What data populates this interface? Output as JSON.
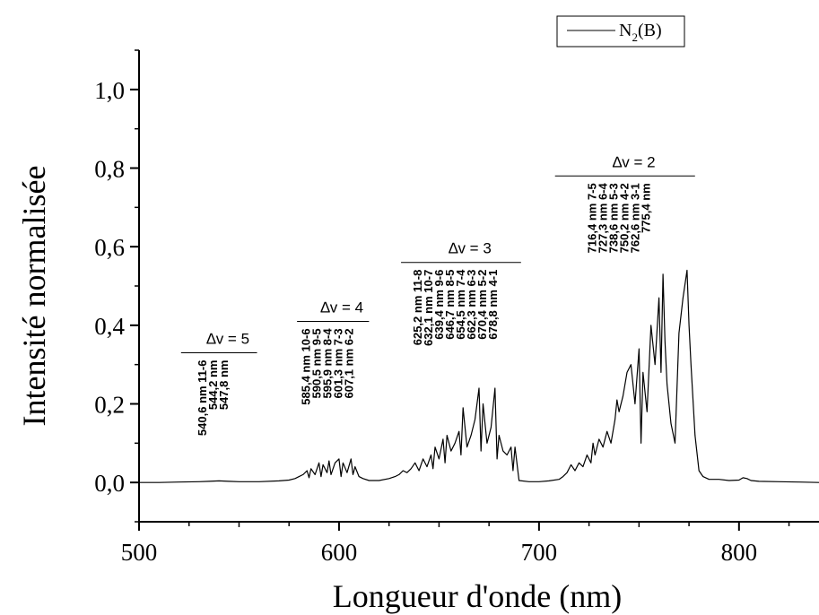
{
  "chart_data": {
    "type": "line",
    "xlabel": "Longueur d'onde (nm)",
    "ylabel": "Intensité normalisée",
    "xlim": [
      500,
      840
    ],
    "ylim": [
      -0.1,
      1.1
    ],
    "x_ticks": [
      {
        "value": 500,
        "label": "500"
      },
      {
        "value": 600,
        "label": "600"
      },
      {
        "value": 700,
        "label": "700"
      },
      {
        "value": 800,
        "label": "800"
      }
    ],
    "y_ticks": [
      {
        "value": 0.0,
        "label": "0,0"
      },
      {
        "value": 0.2,
        "label": "0,2"
      },
      {
        "value": 0.4,
        "label": "0,4"
      },
      {
        "value": 0.6,
        "label": "0,6"
      },
      {
        "value": 0.8,
        "label": "0,8"
      },
      {
        "value": 1.0,
        "label": "1,0"
      }
    ],
    "grid": false,
    "legend": {
      "position": "top-right",
      "entry_main": "N",
      "entry_sub": "2",
      "entry_tail": "(B)"
    },
    "series": [
      {
        "name": "N2(B)",
        "color": "#000000",
        "x": [
          500,
          510,
          520,
          530,
          535,
          540,
          545,
          550,
          560,
          570,
          575,
          578,
          580,
          582,
          584,
          585,
          586,
          588,
          590,
          591,
          592,
          594,
          595,
          596,
          598,
          600,
          601,
          602,
          604,
          606,
          607,
          608,
          610,
          612,
          615,
          620,
          625,
          628,
          630,
          632,
          634,
          636,
          638,
          640,
          642,
          644,
          646,
          647,
          648,
          650,
          652,
          653,
          654,
          656,
          658,
          660,
          661,
          662,
          664,
          666,
          668,
          670,
          671,
          672,
          674,
          676,
          678,
          679,
          680,
          682,
          684,
          686,
          687,
          688,
          690,
          695,
          700,
          705,
          710,
          712,
          714,
          716,
          718,
          720,
          722,
          724,
          726,
          727,
          728,
          730,
          732,
          734,
          736,
          738,
          739,
          740,
          742,
          744,
          746,
          748,
          750,
          751,
          752,
          754,
          756,
          758,
          760,
          761,
          762,
          763,
          764,
          766,
          768,
          770,
          772,
          774,
          775,
          776,
          778,
          780,
          782,
          785,
          790,
          795,
          800,
          802,
          804,
          806,
          810,
          820,
          830,
          840
        ],
        "y": [
          0.0,
          0.0,
          0.001,
          0.002,
          0.003,
          0.004,
          0.003,
          0.002,
          0.002,
          0.004,
          0.006,
          0.01,
          0.015,
          0.02,
          0.03,
          0.012,
          0.035,
          0.02,
          0.05,
          0.015,
          0.045,
          0.025,
          0.055,
          0.02,
          0.05,
          0.06,
          0.015,
          0.05,
          0.025,
          0.06,
          0.02,
          0.04,
          0.015,
          0.01,
          0.005,
          0.005,
          0.01,
          0.015,
          0.02,
          0.03,
          0.025,
          0.035,
          0.05,
          0.03,
          0.06,
          0.04,
          0.07,
          0.035,
          0.09,
          0.06,
          0.11,
          0.05,
          0.12,
          0.08,
          0.1,
          0.13,
          0.07,
          0.19,
          0.09,
          0.12,
          0.16,
          0.24,
          0.08,
          0.2,
          0.1,
          0.14,
          0.24,
          0.06,
          0.12,
          0.08,
          0.07,
          0.09,
          0.03,
          0.09,
          0.005,
          0.002,
          0.002,
          0.004,
          0.008,
          0.015,
          0.025,
          0.045,
          0.03,
          0.05,
          0.04,
          0.07,
          0.05,
          0.1,
          0.07,
          0.11,
          0.09,
          0.13,
          0.1,
          0.16,
          0.21,
          0.18,
          0.22,
          0.28,
          0.3,
          0.2,
          0.34,
          0.1,
          0.28,
          0.18,
          0.4,
          0.3,
          0.47,
          0.28,
          0.53,
          0.36,
          0.25,
          0.15,
          0.1,
          0.38,
          0.47,
          0.54,
          0.4,
          0.3,
          0.12,
          0.03,
          0.015,
          0.008,
          0.008,
          0.005,
          0.006,
          0.012,
          0.01,
          0.005,
          0.003,
          0.002,
          0.001,
          0.0
        ]
      }
    ],
    "annotations": [
      {
        "id": "dv5",
        "label": "∆v = 5",
        "x_start": 521,
        "x_end": 559,
        "y_line": 0.33,
        "lines": [
          "540,6 nm 11-6",
          "544,2 nm",
          "547,8 nm"
        ]
      },
      {
        "id": "dv4",
        "label": "∆v = 4",
        "x_start": 579,
        "x_end": 615,
        "y_line": 0.41,
        "lines": [
          "585,4 nm 10-6",
          "590,5 nm  9-5",
          "595,9 nm  8-4",
          "601,3 nm  7-3",
          "607,1 nm  6-2"
        ]
      },
      {
        "id": "dv3",
        "label": "∆v = 3",
        "x_start": 631,
        "x_end": 691,
        "y_line": 0.56,
        "lines": [
          "625,2 nm 11-8",
          "632,1 nm 10-7",
          "639,4 nm 9-6",
          "646,7 nm 8-5",
          "654,5 nm 7-4",
          "662,3 nm 6-3",
          "670,4 nm 5-2",
          "678,8 nm 4-1"
        ]
      },
      {
        "id": "dv2",
        "label": "∆v = 2",
        "x_start": 708,
        "x_end": 778,
        "y_line": 0.78,
        "lines": [
          "716,4 nm 7-5",
          "727,3 nm 6-4",
          "738,6 nm 5-3",
          "750,2 nm 4-2",
          "762,6 nm 3-1",
          "775,4 nm"
        ]
      }
    ]
  }
}
